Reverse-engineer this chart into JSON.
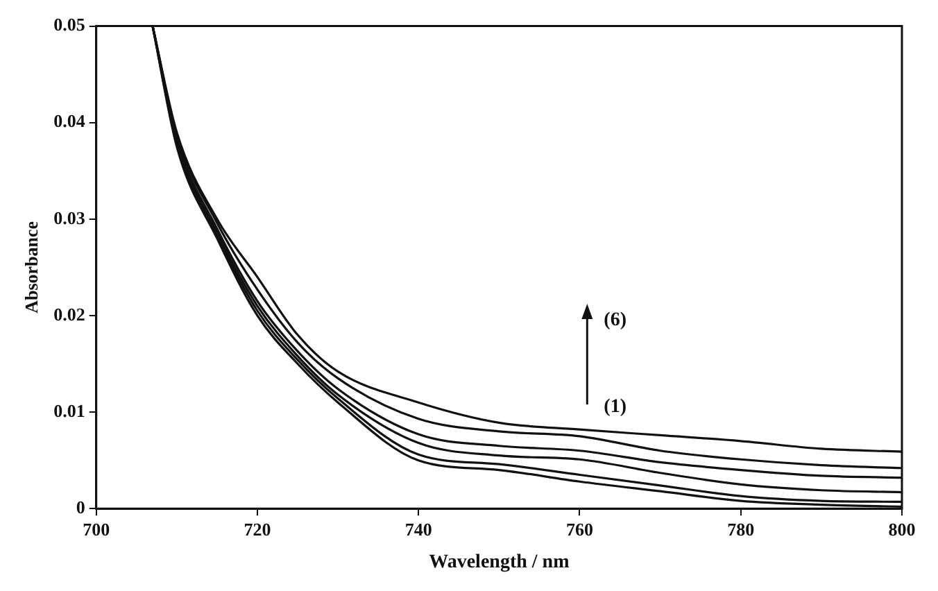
{
  "chart_data": {
    "type": "line",
    "xlabel": "Wavelength / nm",
    "ylabel": "Absorbance",
    "x": [
      707,
      710,
      715,
      720,
      725,
      730,
      740,
      750,
      760,
      770,
      780,
      790,
      800
    ],
    "series": [
      {
        "color": "#111111",
        "values": [
          0.05,
          0.0375,
          0.028,
          0.02,
          0.015,
          0.011,
          0.005,
          0.004,
          0.0028,
          0.0018,
          0.0008,
          0.0004,
          0.0002
        ]
      },
      {
        "color": "#111111",
        "values": [
          0.05,
          0.0378,
          0.0283,
          0.0205,
          0.0154,
          0.0114,
          0.0056,
          0.0046,
          0.0035,
          0.0024,
          0.0013,
          0.0008,
          0.0007
        ]
      },
      {
        "color": "#111111",
        "values": [
          0.05,
          0.038,
          0.0286,
          0.021,
          0.0158,
          0.0118,
          0.0068,
          0.0055,
          0.0051,
          0.0037,
          0.0025,
          0.0019,
          0.0017
        ]
      },
      {
        "color": "#111111",
        "values": [
          0.05,
          0.0383,
          0.029,
          0.0215,
          0.0163,
          0.0124,
          0.0077,
          0.0065,
          0.006,
          0.0048,
          0.004,
          0.0034,
          0.0032
        ]
      },
      {
        "color": "#111111",
        "values": [
          0.05,
          0.0387,
          0.0296,
          0.0227,
          0.0172,
          0.0135,
          0.0093,
          0.008,
          0.0075,
          0.006,
          0.0051,
          0.0045,
          0.0042
        ]
      },
      {
        "color": "#111111",
        "values": [
          0.05,
          0.039,
          0.03,
          0.024,
          0.018,
          0.0142,
          0.011,
          0.0089,
          0.0082,
          0.0076,
          0.007,
          0.0062,
          0.0059
        ]
      }
    ],
    "xlim": [
      700,
      800
    ],
    "xticks": [
      700,
      720,
      740,
      760,
      780,
      800
    ],
    "ylim": [
      0,
      0.05
    ],
    "yticks": [
      0,
      0.01,
      0.02,
      0.03,
      0.04,
      0.05
    ],
    "annotations": [
      "(6)",
      "(1)"
    ],
    "grid": false,
    "legend": false,
    "marker": "none",
    "line_style": "solid"
  }
}
